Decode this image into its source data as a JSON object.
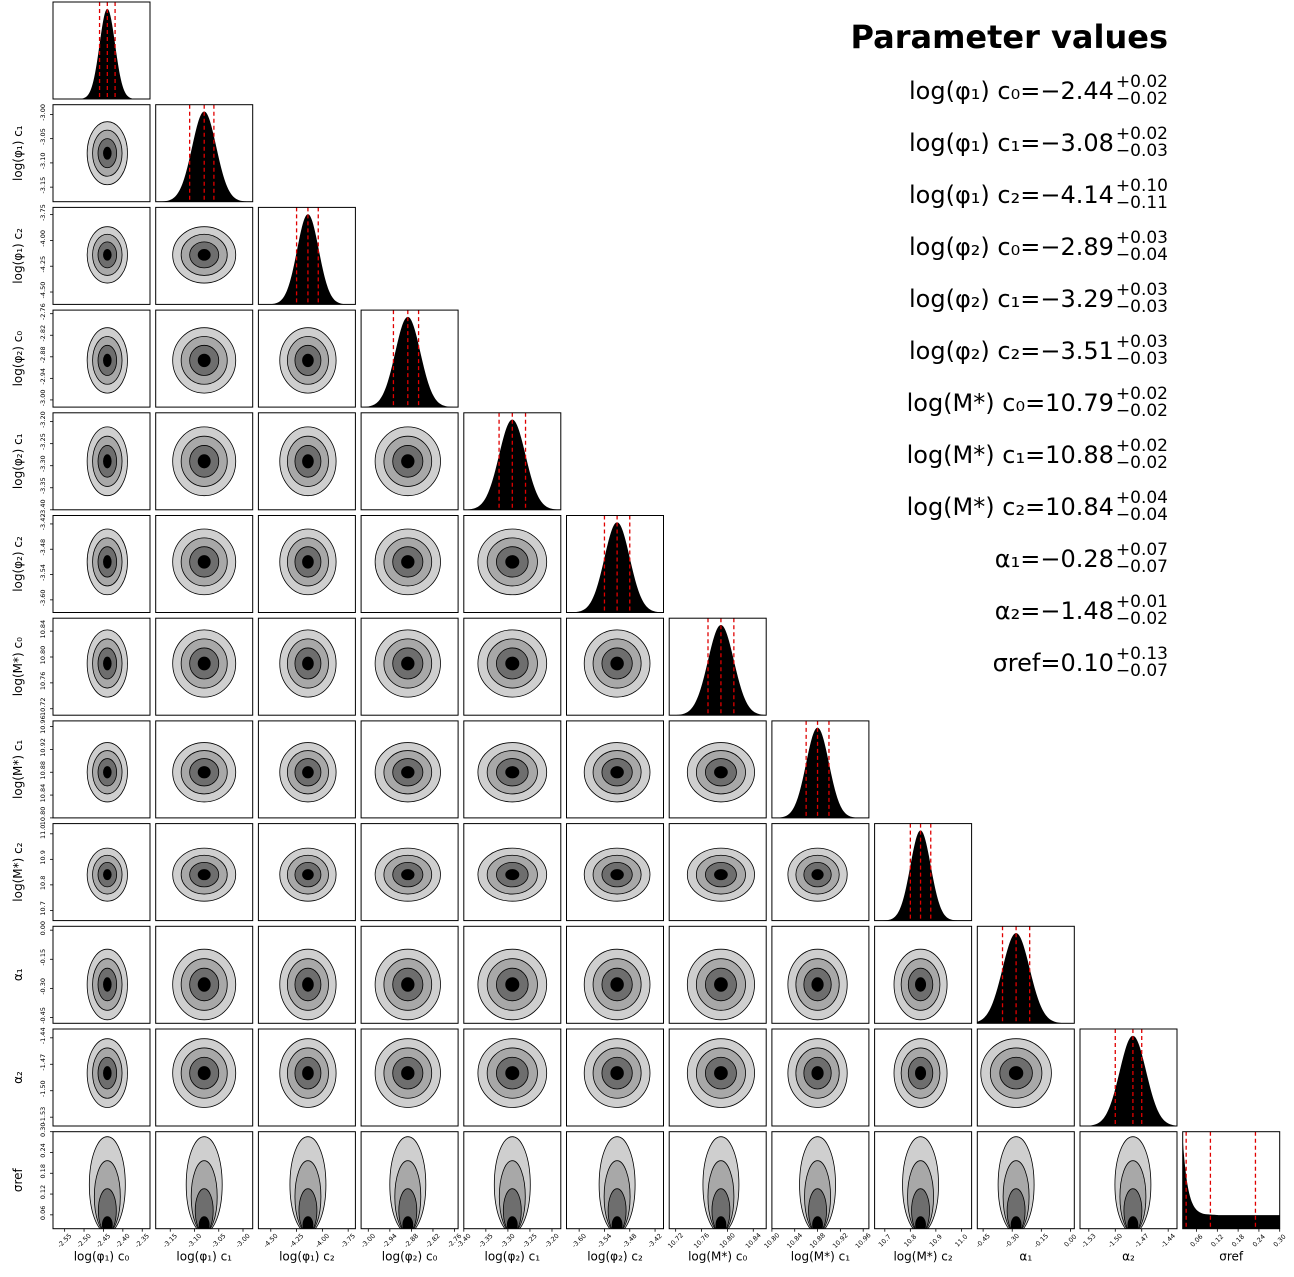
{
  "summary": {
    "title": "Parameter values",
    "rows": [
      {
        "label": "log(φ₁) c₀",
        "value": "−2.44",
        "plus": "+0.02",
        "minus": "−0.02"
      },
      {
        "label": "log(φ₁) c₁",
        "value": "−3.08",
        "plus": "+0.02",
        "minus": "−0.03"
      },
      {
        "label": "log(φ₁) c₂",
        "value": "−4.14",
        "plus": "+0.10",
        "minus": "−0.11"
      },
      {
        "label": "log(φ₂) c₀",
        "value": "−2.89",
        "plus": "+0.03",
        "minus": "−0.04"
      },
      {
        "label": "log(φ₂) c₁",
        "value": "−3.29",
        "plus": "+0.03",
        "minus": "−0.03"
      },
      {
        "label": "log(φ₂) c₂",
        "value": "−3.51",
        "plus": "+0.03",
        "minus": "−0.03"
      },
      {
        "label": "log(M*) c₀",
        "value": "10.79",
        "plus": "+0.02",
        "minus": "−0.02"
      },
      {
        "label": "log(M*) c₁",
        "value": "10.88",
        "plus": "+0.02",
        "minus": "−0.02"
      },
      {
        "label": "log(M*) c₂",
        "value": "10.84",
        "plus": "+0.04",
        "minus": "−0.04"
      },
      {
        "label": "α₁",
        "value": "−0.28",
        "plus": "+0.07",
        "minus": "−0.07"
      },
      {
        "label": "α₂",
        "value": "−1.48",
        "plus": "+0.01",
        "minus": "−0.02"
      },
      {
        "label": "σref",
        "value": "0.10",
        "plus": "+0.13",
        "minus": "−0.07"
      }
    ]
  },
  "chart_data": {
    "type": "corner",
    "parameters": [
      {
        "label": "log(φ₁) c₀",
        "median": -2.44,
        "p16": -2.46,
        "p84": -2.42,
        "range": [
          -2.58,
          -2.33
        ],
        "ticks": [
          "-2.55",
          "-2.50",
          "-2.45",
          "-2.40",
          "-2.35"
        ],
        "tick_values": [
          -2.55,
          -2.5,
          -2.45,
          -2.4,
          -2.35
        ]
      },
      {
        "label": "log(φ₁) c₁",
        "median": -3.08,
        "p16": -3.11,
        "p84": -3.06,
        "range": [
          -3.18,
          -2.98
        ],
        "ticks": [
          "-3.15",
          "-3.10",
          "-3.05",
          "-3.00"
        ],
        "tick_values": [
          -3.15,
          -3.1,
          -3.05,
          -3.0
        ]
      },
      {
        "label": "log(φ₁) c₂",
        "median": -4.14,
        "p16": -4.25,
        "p84": -4.04,
        "range": [
          -4.62,
          -3.68
        ],
        "ticks": [
          "-4.50",
          "-4.25",
          "-4.00",
          "-3.75"
        ],
        "tick_values": [
          -4.5,
          -4.25,
          -4.0,
          -3.75
        ]
      },
      {
        "label": "log(φ₂) c₀",
        "median": -2.89,
        "p16": -2.93,
        "p84": -2.86,
        "range": [
          -3.02,
          -2.75
        ],
        "ticks": [
          "-3.00",
          "-2.94",
          "-2.88",
          "-2.82",
          "-2.76"
        ],
        "tick_values": [
          -3.0,
          -2.94,
          -2.88,
          -2.82,
          -2.76
        ]
      },
      {
        "label": "log(φ₂) c₁",
        "median": -3.29,
        "p16": -3.32,
        "p84": -3.26,
        "range": [
          -3.4,
          -3.18
        ],
        "ticks": [
          "-3.40",
          "-3.35",
          "-3.30",
          "-3.25",
          "-3.20"
        ],
        "tick_values": [
          -3.4,
          -3.35,
          -3.3,
          -3.25,
          -3.2
        ]
      },
      {
        "label": "log(φ₂) c₂",
        "median": -3.51,
        "p16": -3.54,
        "p84": -3.48,
        "range": [
          -3.63,
          -3.4
        ],
        "ticks": [
          "-3.60",
          "-3.54",
          "-3.48",
          "-3.42"
        ],
        "tick_values": [
          -3.6,
          -3.54,
          -3.48,
          -3.42
        ]
      },
      {
        "label": "log(M*) c₀",
        "median": 10.79,
        "p16": 10.77,
        "p84": 10.81,
        "range": [
          10.71,
          10.86
        ],
        "ticks": [
          "10.72",
          "10.76",
          "10.80",
          "10.84"
        ],
        "tick_values": [
          10.72,
          10.76,
          10.8,
          10.84
        ]
      },
      {
        "label": "log(M*) c₁",
        "median": 10.88,
        "p16": 10.86,
        "p84": 10.9,
        "range": [
          10.8,
          10.97
        ],
        "ticks": [
          "10.80",
          "10.84",
          "10.88",
          "10.92",
          "10.96"
        ],
        "tick_values": [
          10.8,
          10.84,
          10.88,
          10.92,
          10.96
        ]
      },
      {
        "label": "log(M*) c₂",
        "median": 10.84,
        "p16": 10.8,
        "p84": 10.88,
        "range": [
          10.66,
          11.04
        ],
        "ticks": [
          "10.7",
          "10.8",
          "10.9",
          "11.0"
        ],
        "tick_values": [
          10.7,
          10.8,
          10.9,
          11.0
        ]
      },
      {
        "label": "α₁",
        "median": -0.28,
        "p16": -0.35,
        "p84": -0.21,
        "range": [
          -0.48,
          0.02
        ],
        "ticks": [
          "-0.45",
          "-0.30",
          "-0.15",
          "0.00"
        ],
        "tick_values": [
          -0.45,
          -0.3,
          -0.15,
          0.0
        ]
      },
      {
        "label": "α₂",
        "median": -1.48,
        "p16": -1.5,
        "p84": -1.47,
        "range": [
          -1.54,
          -1.43
        ],
        "ticks": [
          "-1.53",
          "-1.50",
          "-1.47",
          "-1.44"
        ],
        "tick_values": [
          -1.53,
          -1.5,
          -1.47,
          -1.44
        ]
      },
      {
        "label": "σref",
        "median": 0.1,
        "p16": 0.03,
        "p84": 0.23,
        "range": [
          0.02,
          0.3
        ],
        "ticks": [
          "0.06",
          "0.12",
          "0.18",
          "0.24",
          "0.30"
        ],
        "tick_values": [
          0.06,
          0.12,
          0.18,
          0.24,
          0.3
        ]
      }
    ],
    "diagonal": "1D marginal histograms (black fill), dashed red lines at 16th/50th/84th percentiles",
    "off_diagonal": "2D density contours (grayscale filled levels)",
    "colors": {
      "hist_fill": "#000000",
      "quantile_line": "#e00000",
      "contour_levels": [
        "#cfcfcf",
        "#a8a8a8",
        "#6e6e6e",
        "#000000"
      ]
    }
  }
}
